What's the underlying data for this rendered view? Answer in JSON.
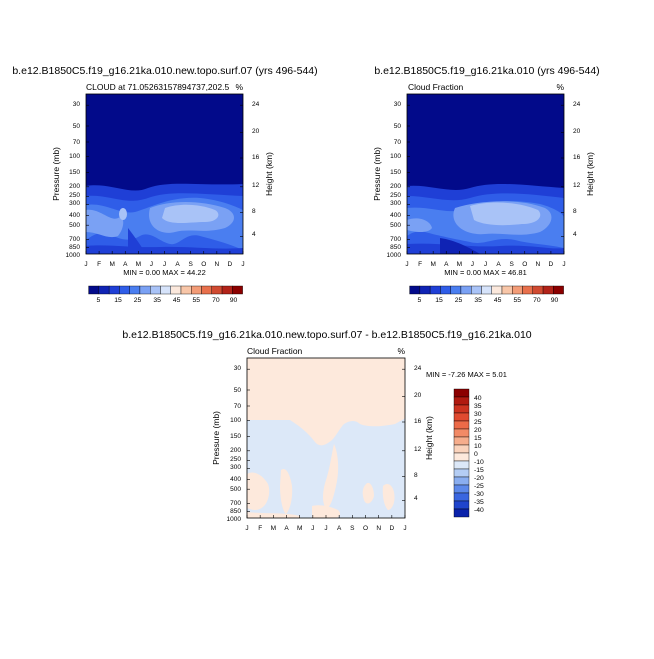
{
  "chart_data": [
    {
      "type": "heatmap",
      "title": "b.e12.B1850C5.f19_g16.21ka.010.new.topo.surf.07 (yrs 496-544)",
      "subtitle_left": "CLOUD at 71.05263157894737,202.5",
      "subtitle_right": "%",
      "xlabel": "",
      "ylabel": "Pressure (mb)",
      "ylabel_right": "Height (km)",
      "x_ticks": [
        "J",
        "F",
        "M",
        "A",
        "M",
        "J",
        "J",
        "A",
        "S",
        "O",
        "N",
        "D",
        "J"
      ],
      "y_ticks": [
        "30",
        "50",
        "70",
        "100",
        "150",
        "200",
        "250",
        "300",
        "400",
        "500",
        "700",
        "850",
        "1000"
      ],
      "y2_ticks": [
        "24",
        "20",
        "16",
        "12",
        "8",
        "4"
      ],
      "minmax_text": "MIN =   0.00 MAX =  44.22",
      "min": 0.0,
      "max": 44.22,
      "colorbar_labels": [
        "5",
        "15",
        "25",
        "35",
        "45",
        "55",
        "70",
        "90"
      ],
      "colorbar_colors": [
        "#020a8a",
        "#0f23b4",
        "#1f3fd6",
        "#2f5de8",
        "#4a7ef0",
        "#7aa1f4",
        "#a9c3f7",
        "#d6e3fa",
        "#fbe8dc",
        "#f8c6a8",
        "#f39c77",
        "#e8704c",
        "#d04a31",
        "#b22319",
        "#8b0000"
      ]
    },
    {
      "type": "heatmap",
      "title": "b.e12.B1850C5.f19_g16.21ka.010 (yrs 496-544)",
      "subtitle_left": "Cloud Fraction",
      "subtitle_right": "%",
      "xlabel": "",
      "ylabel": "Pressure (mb)",
      "ylabel_right": "Height (km)",
      "x_ticks": [
        "J",
        "F",
        "M",
        "A",
        "M",
        "J",
        "J",
        "A",
        "S",
        "O",
        "N",
        "D",
        "J"
      ],
      "y_ticks": [
        "30",
        "50",
        "70",
        "100",
        "150",
        "200",
        "250",
        "300",
        "400",
        "500",
        "700",
        "850",
        "1000"
      ],
      "y2_ticks": [
        "24",
        "20",
        "16",
        "12",
        "8",
        "4"
      ],
      "minmax_text": "MIN =   0.00 MAX =  46.81",
      "min": 0.0,
      "max": 46.81,
      "colorbar_labels": [
        "5",
        "15",
        "25",
        "35",
        "45",
        "55",
        "70",
        "90"
      ],
      "colorbar_colors": [
        "#020a8a",
        "#0f23b4",
        "#1f3fd6",
        "#2f5de8",
        "#4a7ef0",
        "#7aa1f4",
        "#a9c3f7",
        "#d6e3fa",
        "#fbe8dc",
        "#f8c6a8",
        "#f39c77",
        "#e8704c",
        "#d04a31",
        "#b22319",
        "#8b0000"
      ]
    },
    {
      "type": "heatmap",
      "title": "b.e12.B1850C5.f19_g16.21ka.010.new.topo.surf.07 - b.e12.B1850C5.f19_g16.21ka.010",
      "subtitle_left": "Cloud Fraction",
      "subtitle_right": "%",
      "xlabel": "",
      "ylabel": "Pressure (mb)",
      "ylabel_right": "Height (km)",
      "x_ticks": [
        "J",
        "F",
        "M",
        "A",
        "M",
        "J",
        "J",
        "A",
        "S",
        "O",
        "N",
        "D",
        "J"
      ],
      "y_ticks": [
        "30",
        "50",
        "70",
        "100",
        "150",
        "200",
        "250",
        "300",
        "400",
        "500",
        "700",
        "850",
        "1000"
      ],
      "y2_ticks": [
        "24",
        "20",
        "16",
        "12",
        "8",
        "4"
      ],
      "minmax_text": "MIN =  -7.26 MAX =   5.01",
      "min": -7.26,
      "max": 5.01,
      "colorbar_labels": [
        "40",
        "35",
        "30",
        "25",
        "20",
        "15",
        "10",
        "0",
        "-10",
        "-15",
        "-20",
        "-25",
        "-30",
        "-35",
        "-40"
      ],
      "colorbar_colors": [
        "#8b0000",
        "#b01a10",
        "#cc3320",
        "#e04a30",
        "#ec6a48",
        "#f28a66",
        "#f6ad8c",
        "#fad3bc",
        "#fde9dc",
        "#dce8f8",
        "#b4cdf4",
        "#8aaef0",
        "#5d89ea",
        "#3a66e0",
        "#1f44cc",
        "#0a22aa"
      ]
    }
  ]
}
